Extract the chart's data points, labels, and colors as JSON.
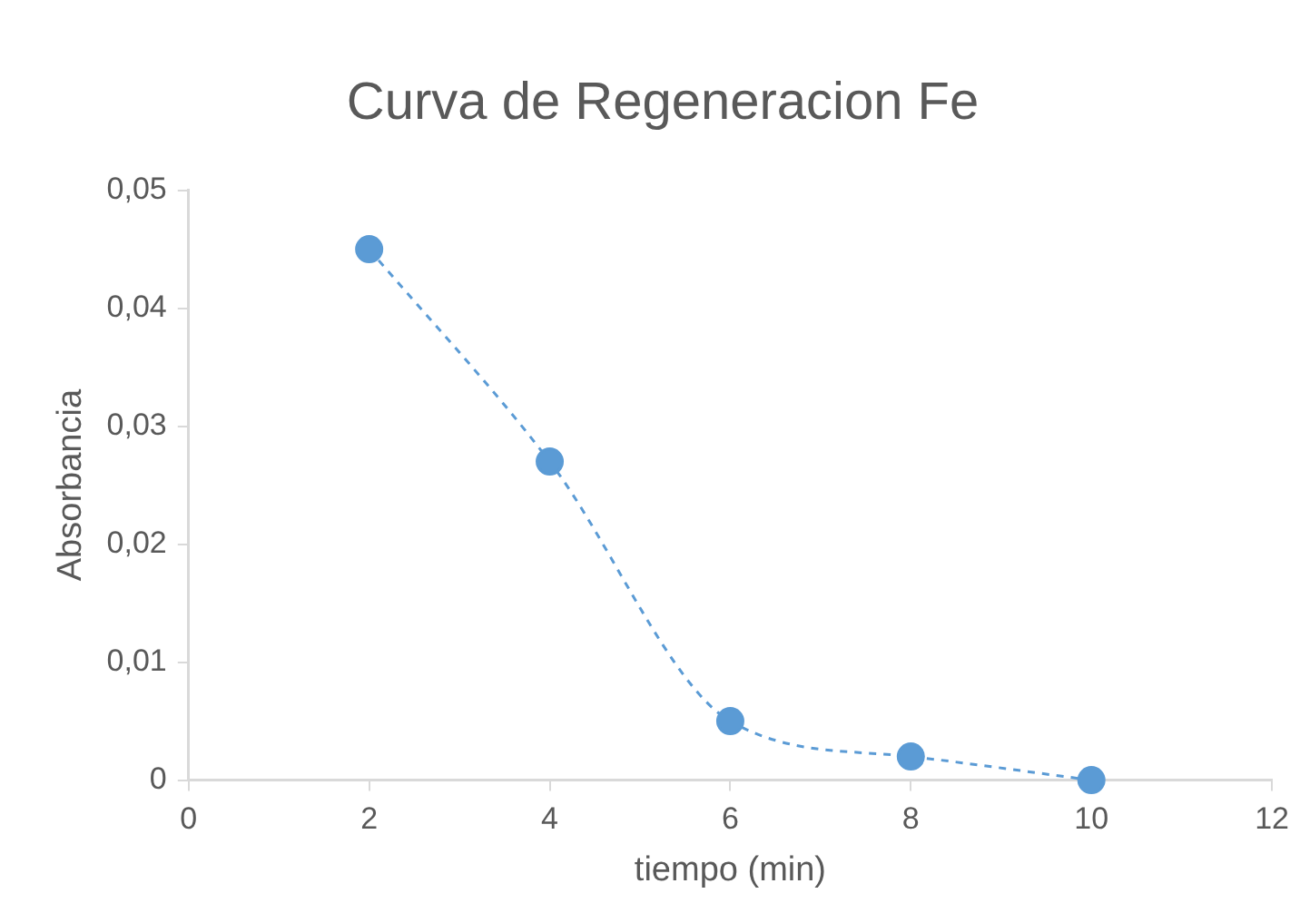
{
  "chart_data": {
    "type": "line",
    "title": "Curva de Regeneracion Fe",
    "xlabel": "tiempo (min)",
    "ylabel": "Absorbancia",
    "x": [
      2,
      4,
      6,
      8,
      10
    ],
    "series": [
      {
        "color": "#5b9bd5",
        "values": [
          0.045,
          0.027,
          0.005,
          0.002,
          0
        ],
        "marker": "circle",
        "line_style": "dashed"
      }
    ],
    "xlim": [
      0,
      12
    ],
    "xticks": [
      0,
      2,
      4,
      6,
      8,
      10,
      12
    ],
    "ylim": [
      0,
      0.05
    ],
    "yticks": [
      0,
      {
        "value": 0.01,
        "label": "0,01"
      },
      {
        "value": 0.02,
        "label": "0,02"
      },
      {
        "value": 0.03,
        "label": "0,03"
      },
      {
        "value": 0.04,
        "label": "0,04"
      },
      {
        "value": 0.05,
        "label": "0,05"
      }
    ],
    "grid": false,
    "legend": false
  }
}
